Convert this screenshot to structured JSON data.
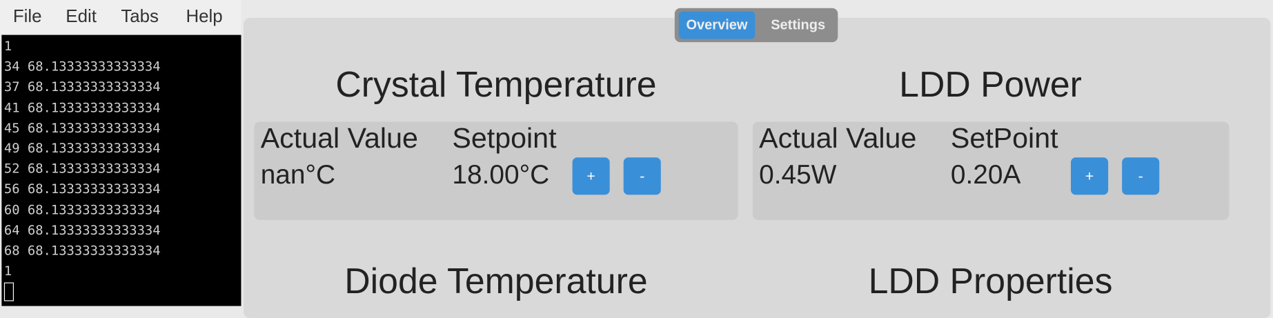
{
  "menu": [
    "File",
    "Edit",
    "Tabs",
    "Help"
  ],
  "terminal": {
    "lines": [
      "1",
      "34 68.13333333333334",
      "37 68.13333333333334",
      "41 68.13333333333334",
      "45 68.13333333333334",
      "49 68.13333333333334",
      "52 68.13333333333334",
      "56 68.13333333333334",
      "60 68.13333333333334",
      "64 68.13333333333334",
      "68 68.13333333333334",
      "1"
    ]
  },
  "tabs": [
    "Overview",
    "Settings"
  ],
  "panels": [
    {
      "title": "Crystal Temperature",
      "headers": [
        "Actual Value",
        "Setpoint"
      ],
      "values": [
        "nan°C",
        "18.00°C"
      ],
      "buttons": [
        "+",
        "-"
      ]
    },
    {
      "title": "LDD Power",
      "headers": [
        "Actual Value",
        "SetPoint"
      ],
      "values": [
        "0.45W",
        "0.20A"
      ],
      "buttons": [
        "+",
        "-"
      ]
    }
  ],
  "sections": [
    "Diode Temperature",
    "LDD Properties"
  ]
}
